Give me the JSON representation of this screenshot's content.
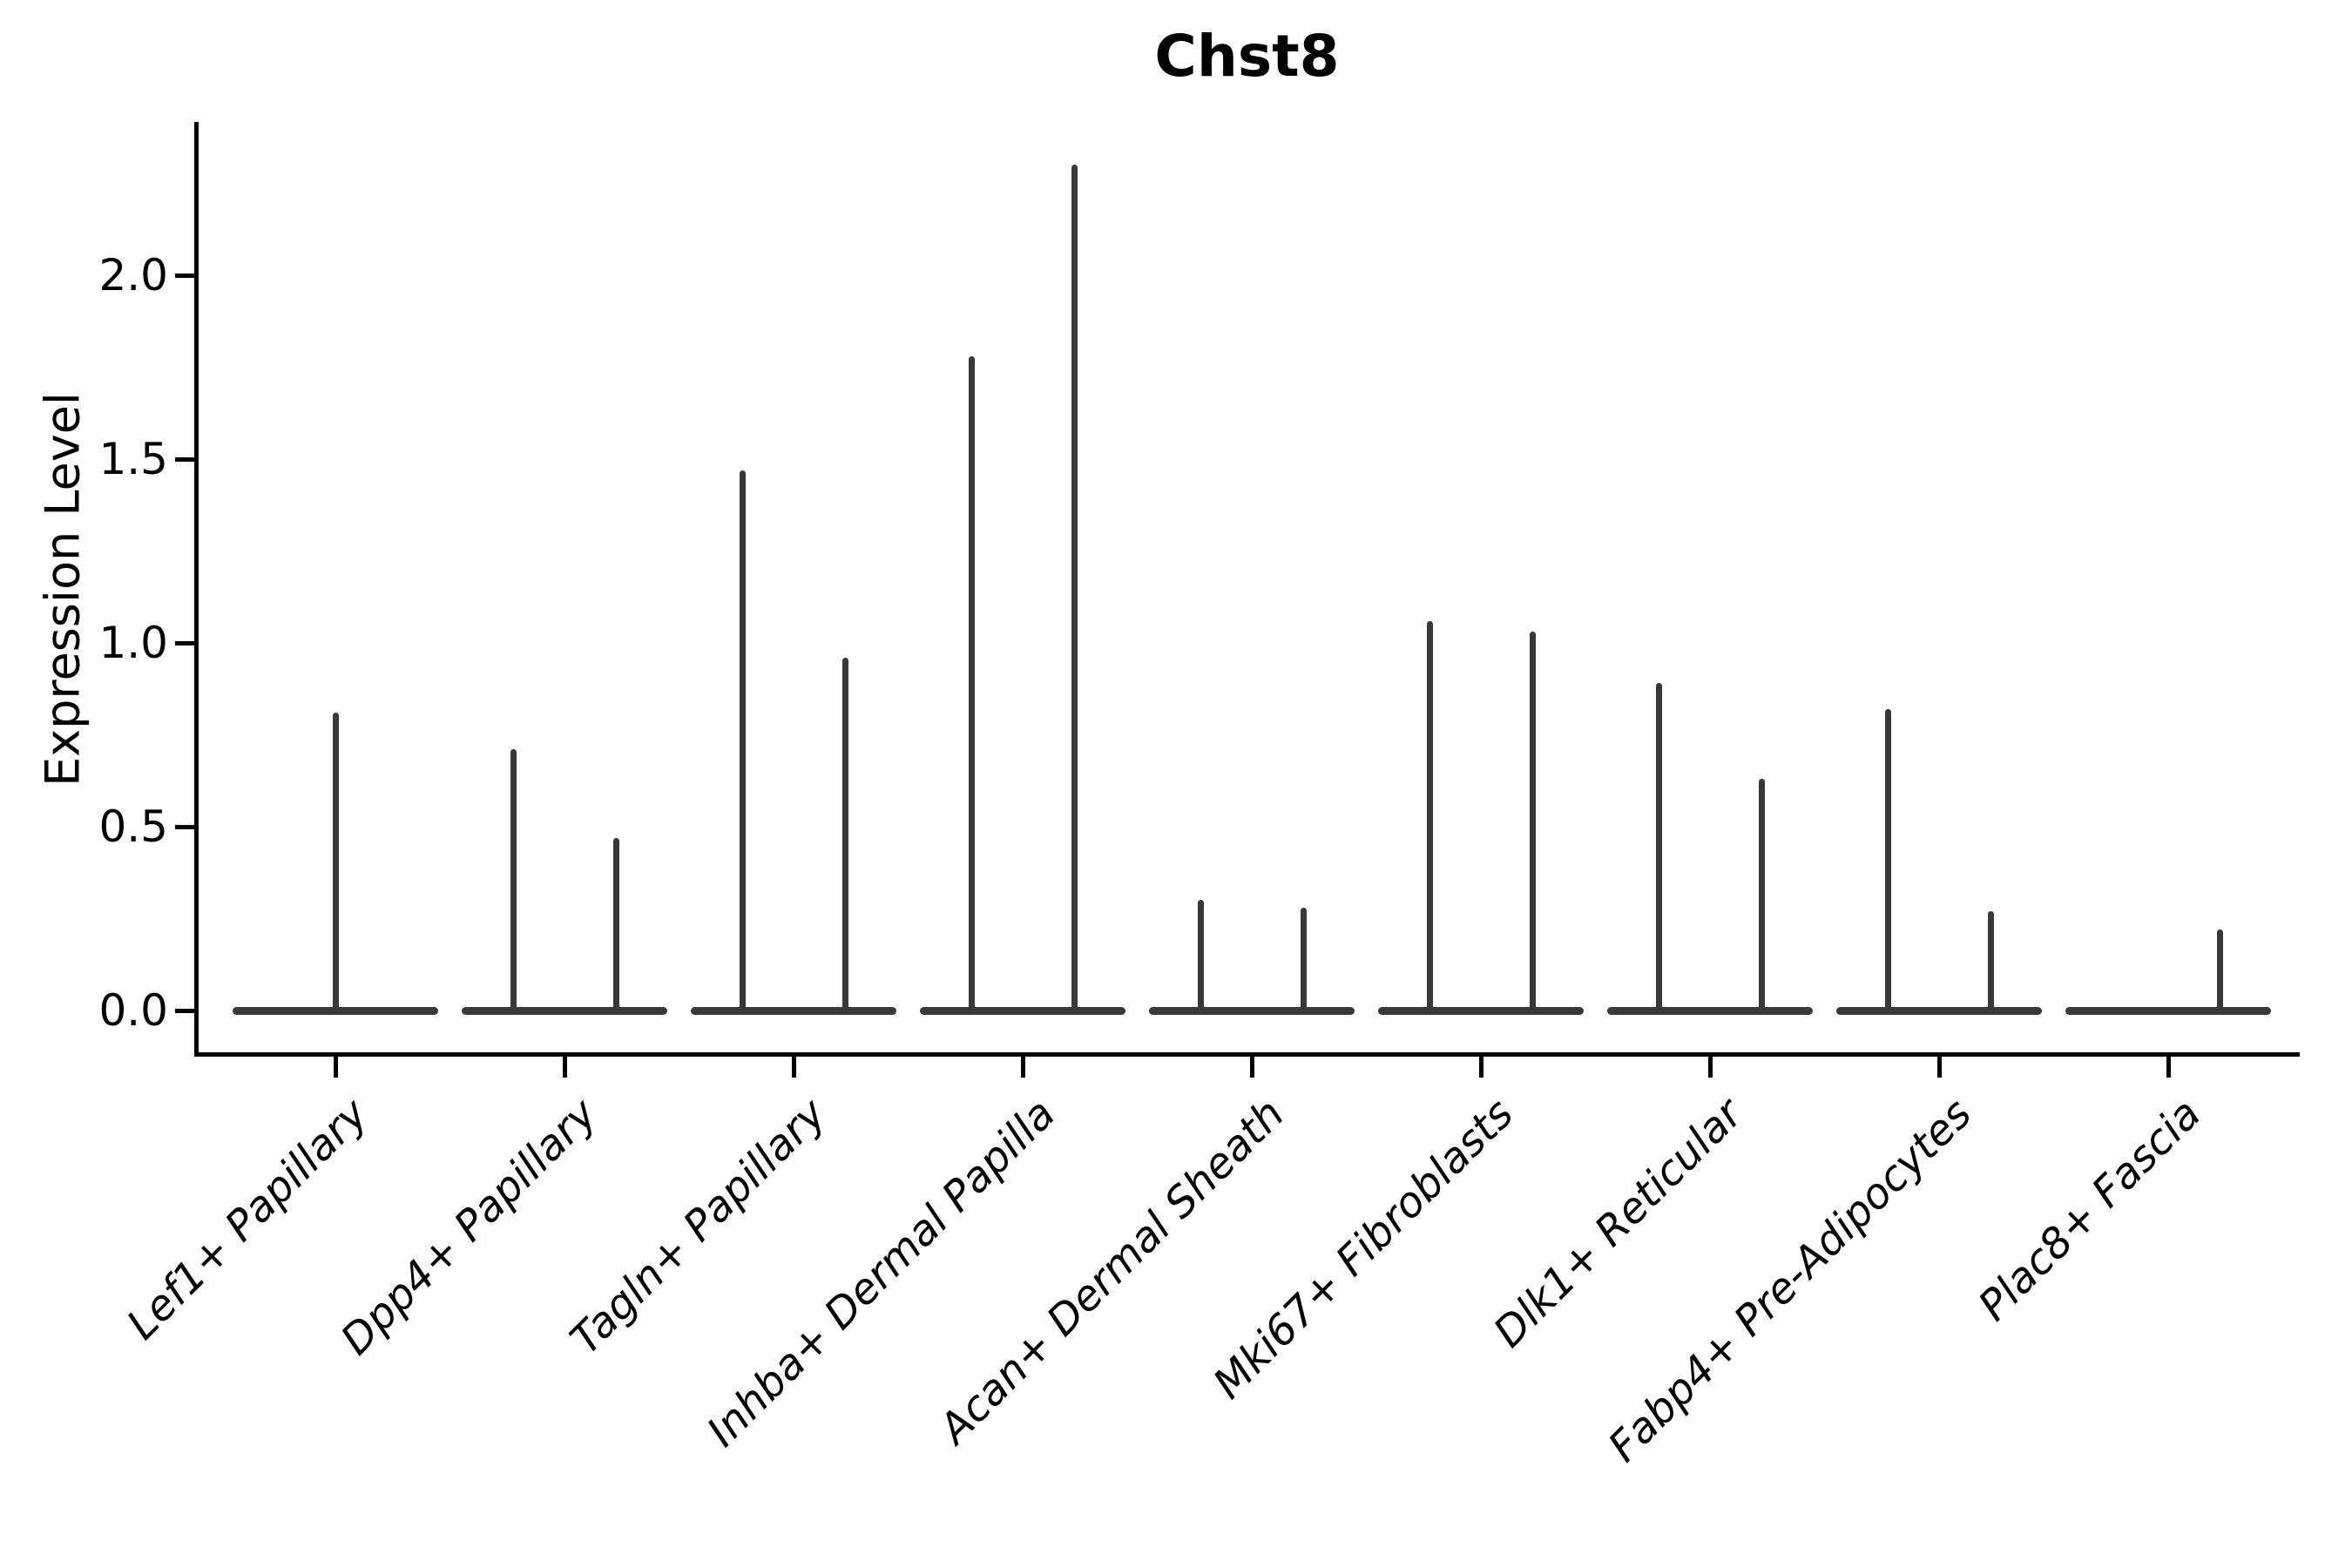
{
  "chart_data": {
    "type": "violin",
    "title": "Chst8",
    "xlabel": "",
    "ylabel": "Expression Level",
    "ylim": [
      -0.12,
      2.42
    ],
    "grid": false,
    "legend": "none",
    "violin_color": "#383838",
    "axis_color": "#000000",
    "y_ticks": [
      {
        "label": "0.0",
        "value": 0.0
      },
      {
        "label": "0.5",
        "value": 0.5
      },
      {
        "label": "1.0",
        "value": 1.0
      },
      {
        "label": "1.5",
        "value": 1.5
      },
      {
        "label": "2.0",
        "value": 2.0
      }
    ],
    "categories": [
      "Lef1+ Papillary",
      "Dpp4+ Papillary",
      "Tagln+ Papillary",
      "Inhba+ Dermal Papilla",
      "Acan+ Dermal Sheath",
      "Mki67+ Fibroblasts",
      "Dlk1+ Reticular",
      "Fabp4+ Pre-Adipocytes",
      "Plac8+ Fascia"
    ],
    "violins": [
      {
        "category": "Lef1+ Papillary",
        "groups": [
          {
            "position": "center",
            "max_expression": 0.81
          }
        ]
      },
      {
        "category": "Dpp4+ Papillary",
        "groups": [
          {
            "position": "left",
            "max_expression": 0.71
          },
          {
            "position": "right",
            "max_expression": 0.47
          }
        ]
      },
      {
        "category": "Tagln+ Papillary",
        "groups": [
          {
            "position": "left",
            "max_expression": 1.47
          },
          {
            "position": "right",
            "max_expression": 0.96
          }
        ]
      },
      {
        "category": "Inhba+ Dermal Papilla",
        "groups": [
          {
            "position": "left",
            "max_expression": 1.78
          },
          {
            "position": "right",
            "max_expression": 2.3
          }
        ]
      },
      {
        "category": "Acan+ Dermal Sheath",
        "groups": [
          {
            "position": "left",
            "max_expression": 0.3
          },
          {
            "position": "right",
            "max_expression": 0.28
          }
        ]
      },
      {
        "category": "Mki67+ Fibroblasts",
        "groups": [
          {
            "position": "left",
            "max_expression": 1.06
          },
          {
            "position": "right",
            "max_expression": 1.03
          }
        ]
      },
      {
        "category": "Dlk1+ Reticular",
        "groups": [
          {
            "position": "left",
            "max_expression": 0.89
          },
          {
            "position": "right",
            "max_expression": 0.63
          }
        ]
      },
      {
        "category": "Fabp4+ Pre-Adipocytes",
        "groups": [
          {
            "position": "left",
            "max_expression": 0.82
          },
          {
            "position": "right",
            "max_expression": 0.27
          }
        ]
      },
      {
        "category": "Plac8+ Fascia",
        "groups": [
          {
            "position": "left",
            "max_expression": 0.0
          },
          {
            "position": "right",
            "max_expression": 0.22
          }
        ]
      }
    ]
  }
}
